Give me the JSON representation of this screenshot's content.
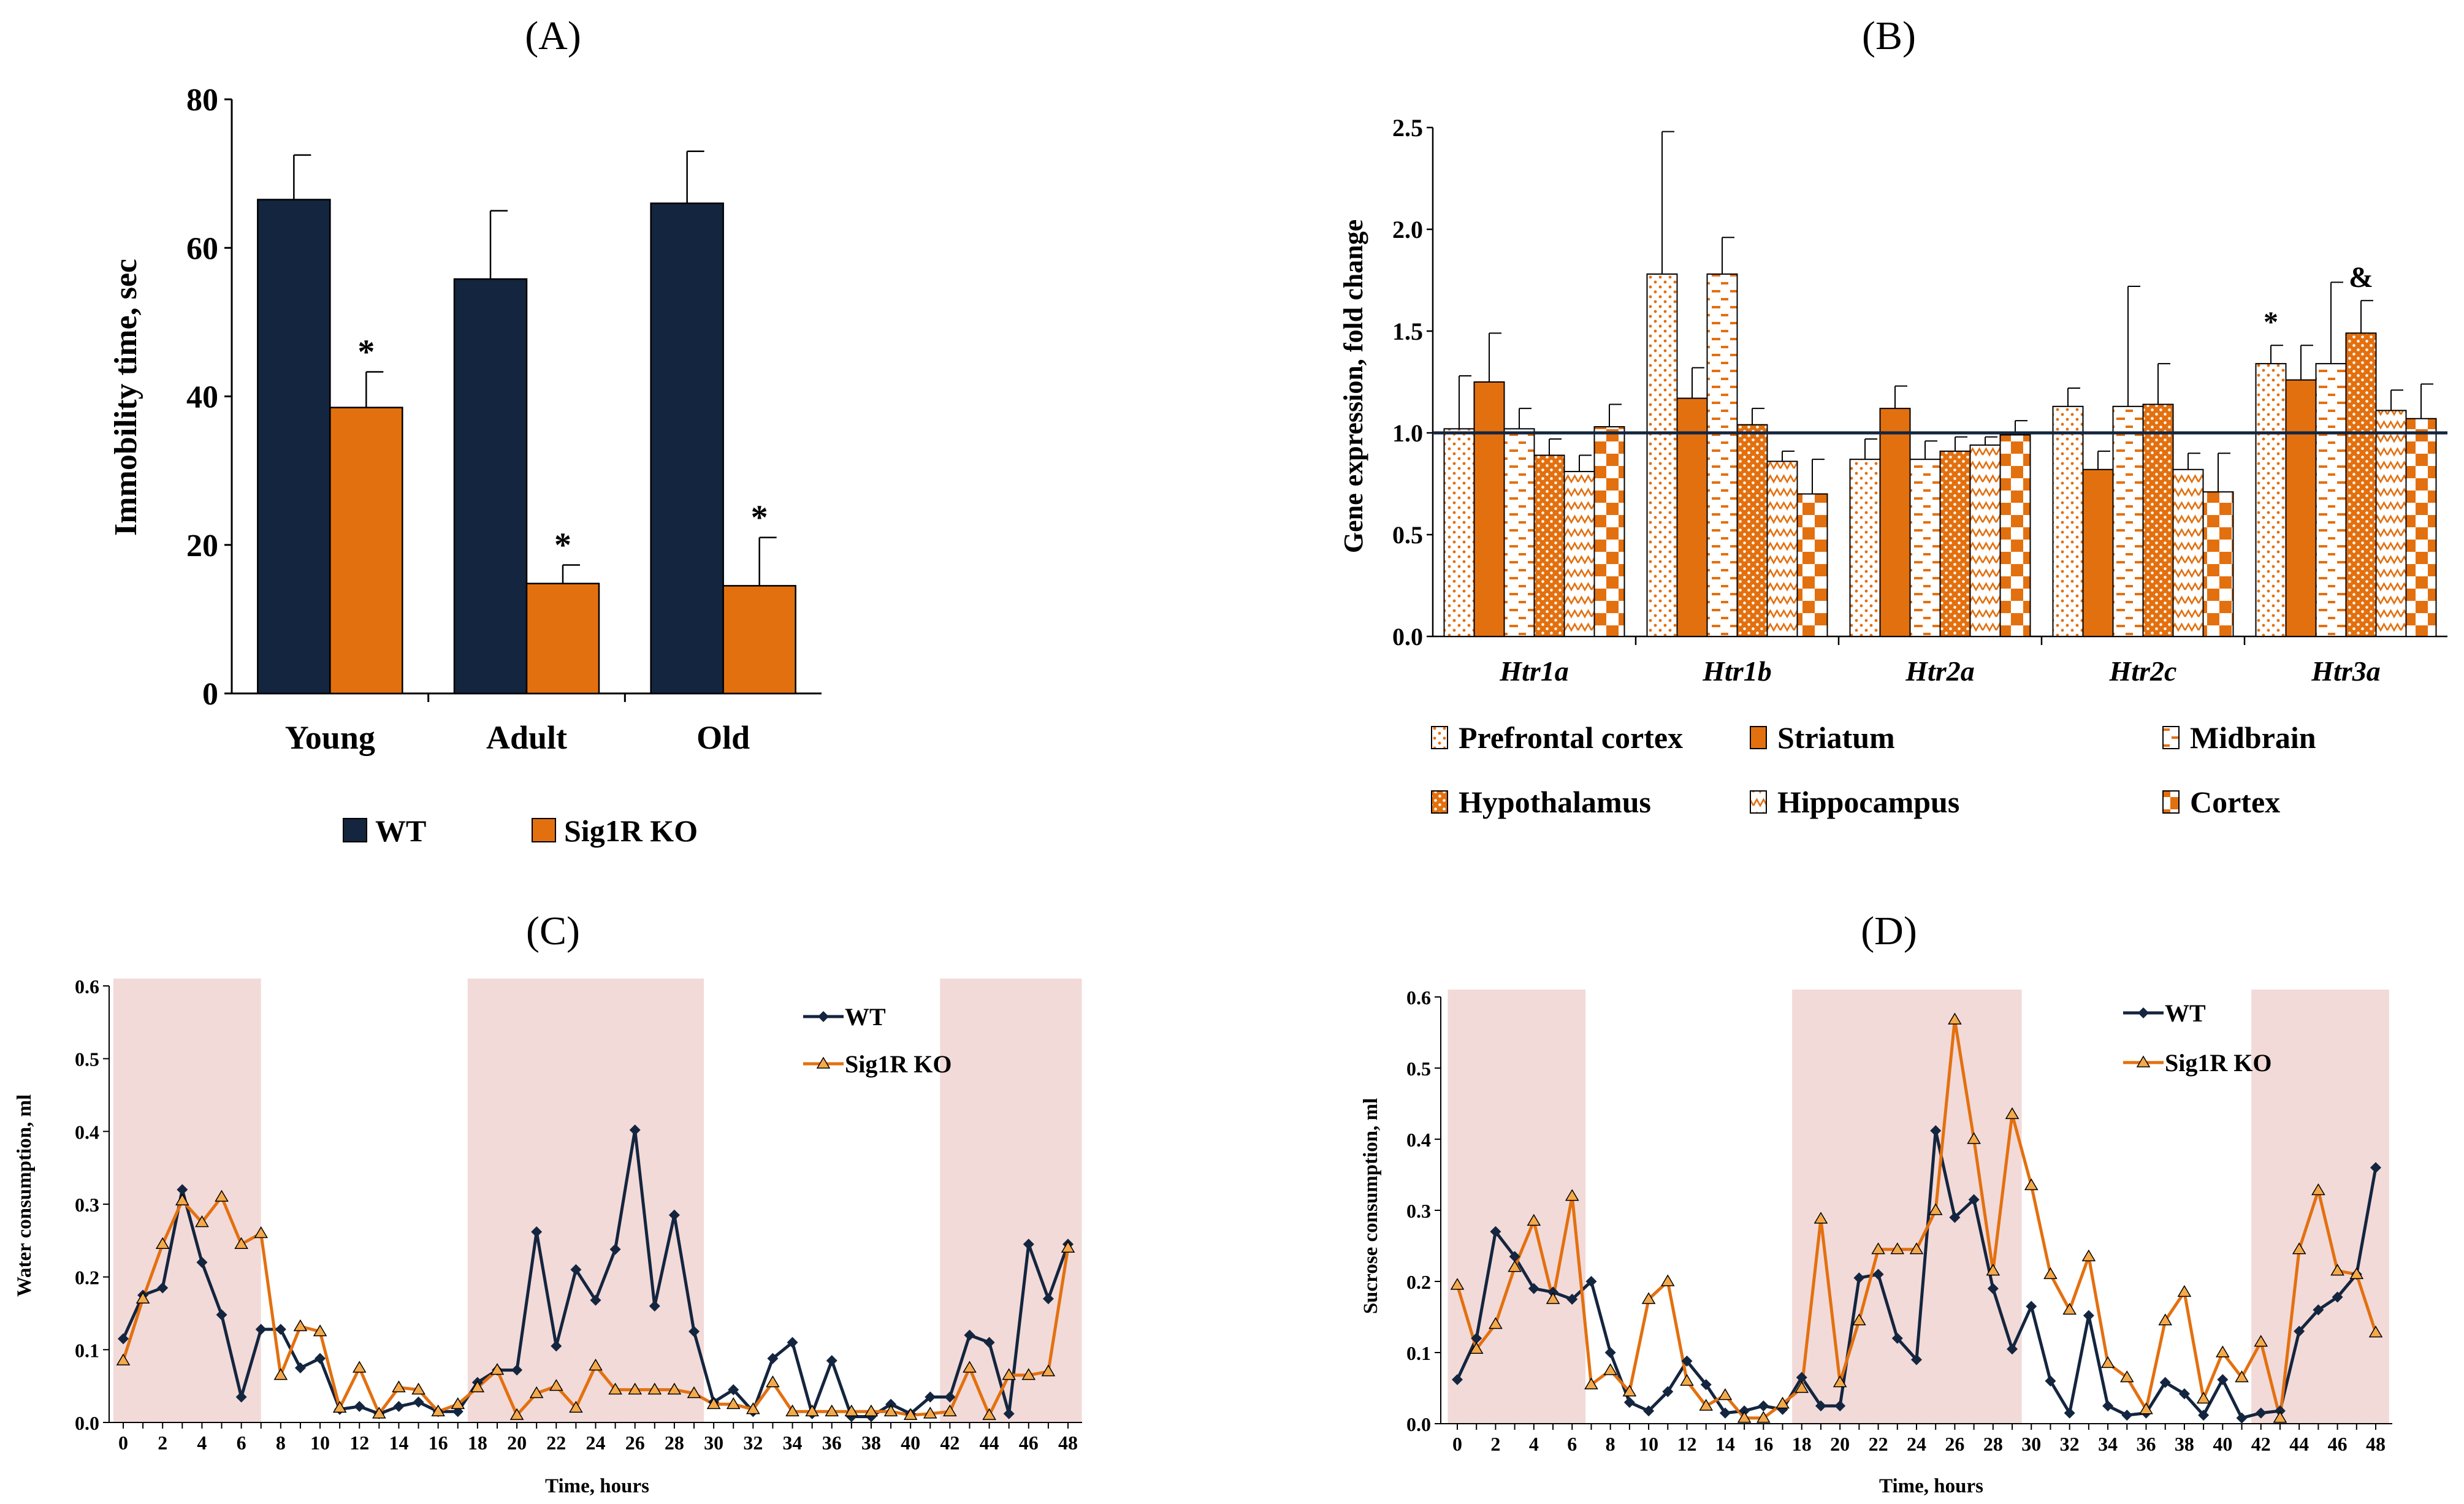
{
  "chart_data": [
    {
      "id": "A",
      "type": "bar",
      "panel_label": "(A)",
      "ylabel": "Immobility time, sec",
      "xlabel": "",
      "ylim": [
        0,
        80
      ],
      "yticks": [
        "0",
        "20",
        "40",
        "60",
        "80"
      ],
      "categories": [
        "Young",
        "Adult",
        "Old"
      ],
      "series": [
        {
          "name": "WT",
          "color": "#14253f",
          "values": [
            66.5,
            55.8,
            66.0
          ],
          "errors": [
            6.0,
            9.2,
            7.0
          ]
        },
        {
          "name": "Sig1R KO",
          "color": "#e3700f",
          "values": [
            38.5,
            14.8,
            14.5
          ],
          "errors": [
            4.8,
            2.5,
            6.5
          ]
        }
      ],
      "annotations": [
        {
          "series": 1,
          "category": 0,
          "text": "*"
        },
        {
          "series": 1,
          "category": 1,
          "text": "*"
        },
        {
          "series": 1,
          "category": 2,
          "text": "*"
        }
      ]
    },
    {
      "id": "B",
      "type": "bar",
      "panel_label": "(B)",
      "ylabel": "Gene expression, fold change",
      "xlabel": "",
      "ylim": [
        0,
        2.5
      ],
      "yticks": [
        "0.0",
        "0.5",
        "1.0",
        "1.5",
        "2.0",
        "2.5"
      ],
      "reference_line": 1.0,
      "categories": [
        "Htr1a",
        "Htr1b",
        "Htr2a",
        "Htr2c",
        "Htr3a"
      ],
      "series": [
        {
          "name": "Prefrontal cortex",
          "color": "#e3700f",
          "pattern": "dots-sparse",
          "values": [
            1.02,
            1.78,
            0.87,
            1.13,
            1.34
          ],
          "errors": [
            0.26,
            0.7,
            0.1,
            0.09,
            0.09
          ]
        },
        {
          "name": "Striatum",
          "color": "#e3700f",
          "pattern": "solid",
          "values": [
            1.25,
            1.17,
            1.12,
            0.82,
            1.26
          ],
          "errors": [
            0.24,
            0.15,
            0.11,
            0.09,
            0.17
          ]
        },
        {
          "name": "Midbrain",
          "color": "#e3700f",
          "pattern": "dashes",
          "values": [
            1.02,
            1.78,
            0.87,
            1.13,
            1.34
          ],
          "errors": [
            0.1,
            0.18,
            0.09,
            0.59,
            0.4
          ]
        },
        {
          "name": "Hypothalamus",
          "color": "#e3700f",
          "pattern": "dots-dense",
          "values": [
            0.89,
            1.04,
            0.91,
            1.14,
            1.49
          ],
          "errors": [
            0.08,
            0.08,
            0.07,
            0.2,
            0.16
          ]
        },
        {
          "name": "Hippocampus",
          "color": "#e3700f",
          "pattern": "zigzag",
          "values": [
            0.81,
            0.86,
            0.94,
            0.82,
            1.11
          ],
          "errors": [
            0.08,
            0.05,
            0.04,
            0.08,
            0.1
          ]
        },
        {
          "name": "Cortex",
          "color": "#e3700f",
          "pattern": "checker",
          "values": [
            1.03,
            0.7,
            0.99,
            0.71,
            1.07
          ],
          "errors": [
            0.11,
            0.17,
            0.07,
            0.19,
            0.17
          ]
        }
      ],
      "annotations": [
        {
          "series": 0,
          "category": 4,
          "text": "*"
        },
        {
          "series": 3,
          "category": 4,
          "text": "&"
        }
      ]
    },
    {
      "id": "C",
      "type": "line",
      "panel_label": "(C)",
      "ylabel": "Water consumption, ml",
      "xlabel": "Time, hours",
      "ylim": [
        0,
        0.6
      ],
      "xlim": [
        0,
        48
      ],
      "yticks": [
        "0.0",
        "0.1",
        "0.2",
        "0.3",
        "0.4",
        "0.5",
        "0.6"
      ],
      "xticks": [
        "0",
        "2",
        "4",
        "6",
        "8",
        "10",
        "12",
        "14",
        "16",
        "18",
        "20",
        "22",
        "24",
        "26",
        "28",
        "30",
        "32",
        "34",
        "36",
        "38",
        "40",
        "42",
        "44",
        "46",
        "48"
      ],
      "shaded_ranges": [
        [
          -0.5,
          7
        ],
        [
          17.5,
          29.5
        ],
        [
          41.5,
          48.7
        ]
      ],
      "series": [
        {
          "name": "WT",
          "color": "#14253f",
          "marker": "diamond",
          "x": [
            0,
            1,
            2,
            3,
            4,
            5,
            6,
            7,
            8,
            9,
            10,
            11,
            12,
            13,
            14,
            15,
            16,
            17,
            18,
            19,
            20,
            21,
            22,
            23,
            24,
            25,
            26,
            27,
            28,
            29,
            30,
            31,
            32,
            33,
            34,
            35,
            36,
            37,
            38,
            39,
            40,
            41,
            42,
            43,
            44,
            45,
            46,
            47,
            48
          ],
          "y": [
            0.115,
            0.175,
            0.185,
            0.32,
            0.22,
            0.148,
            0.035,
            0.128,
            0.128,
            0.075,
            0.088,
            0.018,
            0.022,
            0.012,
            0.022,
            0.028,
            0.015,
            0.015,
            0.055,
            0.072,
            0.072,
            0.262,
            0.105,
            0.21,
            0.168,
            0.238,
            0.402,
            0.16,
            0.285,
            0.125,
            0.028,
            0.045,
            0.015,
            0.088,
            0.11,
            0.012,
            0.085,
            0.008,
            0.008,
            0.025,
            0.012,
            0.035,
            0.035,
            0.12,
            0.11,
            0.012,
            0.245,
            0.17,
            0.245
          ]
        },
        {
          "name": "Sig1R KO",
          "color": "#e3700f",
          "marker": "triangle",
          "x": [
            0,
            1,
            2,
            3,
            4,
            5,
            6,
            7,
            8,
            9,
            10,
            11,
            12,
            13,
            14,
            15,
            16,
            17,
            18,
            19,
            20,
            21,
            22,
            23,
            24,
            25,
            26,
            27,
            28,
            29,
            30,
            31,
            32,
            33,
            34,
            35,
            36,
            37,
            38,
            39,
            40,
            41,
            42,
            43,
            44,
            45,
            46,
            47,
            48
          ],
          "y": [
            0.085,
            0.17,
            0.245,
            0.305,
            0.275,
            0.31,
            0.245,
            0.26,
            0.065,
            0.132,
            0.125,
            0.02,
            0.075,
            0.012,
            0.048,
            0.045,
            0.015,
            0.025,
            0.048,
            0.072,
            0.01,
            0.04,
            0.05,
            0.02,
            0.078,
            0.045,
            0.045,
            0.045,
            0.045,
            0.04,
            0.025,
            0.025,
            0.018,
            0.055,
            0.015,
            0.015,
            0.015,
            0.015,
            0.015,
            0.015,
            0.01,
            0.012,
            0.015,
            0.075,
            0.01,
            0.065,
            0.065,
            0.07,
            0.24
          ]
        }
      ]
    },
    {
      "id": "D",
      "type": "line",
      "panel_label": "(D)",
      "ylabel": "Sucrose consumption, ml",
      "xlabel": "Time, hours",
      "ylim": [
        0,
        0.6
      ],
      "xlim": [
        0,
        48
      ],
      "yticks": [
        "0.0",
        "0.1",
        "0.2",
        "0.3",
        "0.4",
        "0.5",
        "0.6"
      ],
      "xticks": [
        "0",
        "2",
        "4",
        "6",
        "8",
        "10",
        "12",
        "14",
        "16",
        "18",
        "20",
        "22",
        "24",
        "26",
        "28",
        "30",
        "32",
        "34",
        "36",
        "38",
        "40",
        "42",
        "44",
        "46",
        "48"
      ],
      "shaded_ranges": [
        [
          -0.5,
          6.7
        ],
        [
          17.5,
          29.5
        ],
        [
          41.5,
          48.7
        ]
      ],
      "series": [
        {
          "name": "WT",
          "color": "#14253f",
          "marker": "diamond",
          "x": [
            0,
            1,
            2,
            3,
            4,
            5,
            6,
            7,
            8,
            9,
            10,
            11,
            12,
            13,
            14,
            15,
            16,
            17,
            18,
            19,
            20,
            21,
            22,
            23,
            24,
            25,
            26,
            27,
            28,
            29,
            30,
            31,
            32,
            33,
            34,
            35,
            36,
            37,
            38,
            39,
            40,
            41,
            42,
            43,
            44,
            45,
            46,
            47,
            48
          ],
          "y": [
            0.062,
            0.12,
            0.27,
            0.235,
            0.19,
            0.185,
            0.175,
            0.2,
            0.1,
            0.03,
            0.018,
            0.045,
            0.088,
            0.055,
            0.015,
            0.018,
            0.025,
            0.02,
            0.065,
            0.025,
            0.025,
            0.205,
            0.21,
            0.12,
            0.09,
            0.412,
            0.29,
            0.315,
            0.19,
            0.105,
            0.165,
            0.06,
            0.015,
            0.152,
            0.025,
            0.012,
            0.015,
            0.058,
            0.042,
            0.012,
            0.062,
            0.008,
            0.015,
            0.018,
            0.13,
            0.16,
            0.178,
            0.21,
            0.36
          ]
        },
        {
          "name": "Sig1R KO",
          "color": "#e3700f",
          "marker": "triangle",
          "x": [
            0,
            1,
            2,
            3,
            4,
            5,
            6,
            7,
            8,
            9,
            10,
            11,
            12,
            13,
            14,
            15,
            16,
            17,
            18,
            19,
            20,
            21,
            22,
            23,
            24,
            25,
            26,
            27,
            28,
            29,
            30,
            31,
            32,
            33,
            34,
            35,
            36,
            37,
            38,
            39,
            40,
            41,
            42,
            43,
            44,
            45,
            46,
            47,
            48
          ],
          "y": [
            0.195,
            0.105,
            0.14,
            0.22,
            0.285,
            0.175,
            0.32,
            0.055,
            0.075,
            0.045,
            0.175,
            0.2,
            0.06,
            0.025,
            0.04,
            0.008,
            0.008,
            0.028,
            0.05,
            0.288,
            0.058,
            0.145,
            0.245,
            0.245,
            0.245,
            0.3,
            0.568,
            0.4,
            0.215,
            0.435,
            0.335,
            0.21,
            0.16,
            0.235,
            0.085,
            0.065,
            0.02,
            0.145,
            0.185,
            0.035,
            0.1,
            0.065,
            0.115,
            0.008,
            0.245,
            0.328,
            0.215,
            0.21,
            0.128
          ]
        }
      ]
    }
  ]
}
